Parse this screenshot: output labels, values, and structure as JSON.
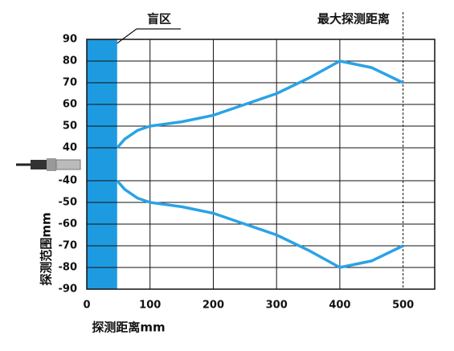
{
  "chart_data": {
    "type": "line",
    "y_label": "探测范围mm",
    "x_label": "探测距离mm",
    "x": [
      48,
      60,
      80,
      100,
      150,
      200,
      250,
      300,
      350,
      400,
      450,
      500
    ],
    "series": [
      {
        "color": "#29a3e6",
        "values": [
          40,
          44,
          48,
          50,
          52,
          55,
          60,
          65,
          72,
          80,
          77,
          70
        ]
      },
      {
        "color": "#29a3e6",
        "values": [
          -40,
          -44,
          -48,
          -50,
          -52,
          -55,
          -60,
          -65,
          -72,
          -80,
          -77,
          -70
        ]
      }
    ],
    "xlim": [
      0,
      550
    ],
    "xticks": [
      0,
      100,
      200,
      300,
      400,
      500
    ],
    "ylim": [
      -90,
      90
    ],
    "yticks": [
      90,
      80,
      70,
      60,
      50,
      40,
      -40,
      -50,
      -60,
      -70,
      -80,
      -90
    ],
    "grid": true,
    "blind_zone": {
      "label": "盲区",
      "xlim": [
        0,
        48
      ],
      "color": "#1e9be0"
    },
    "max_range": {
      "label": "最大探测距离",
      "x": 500
    }
  }
}
